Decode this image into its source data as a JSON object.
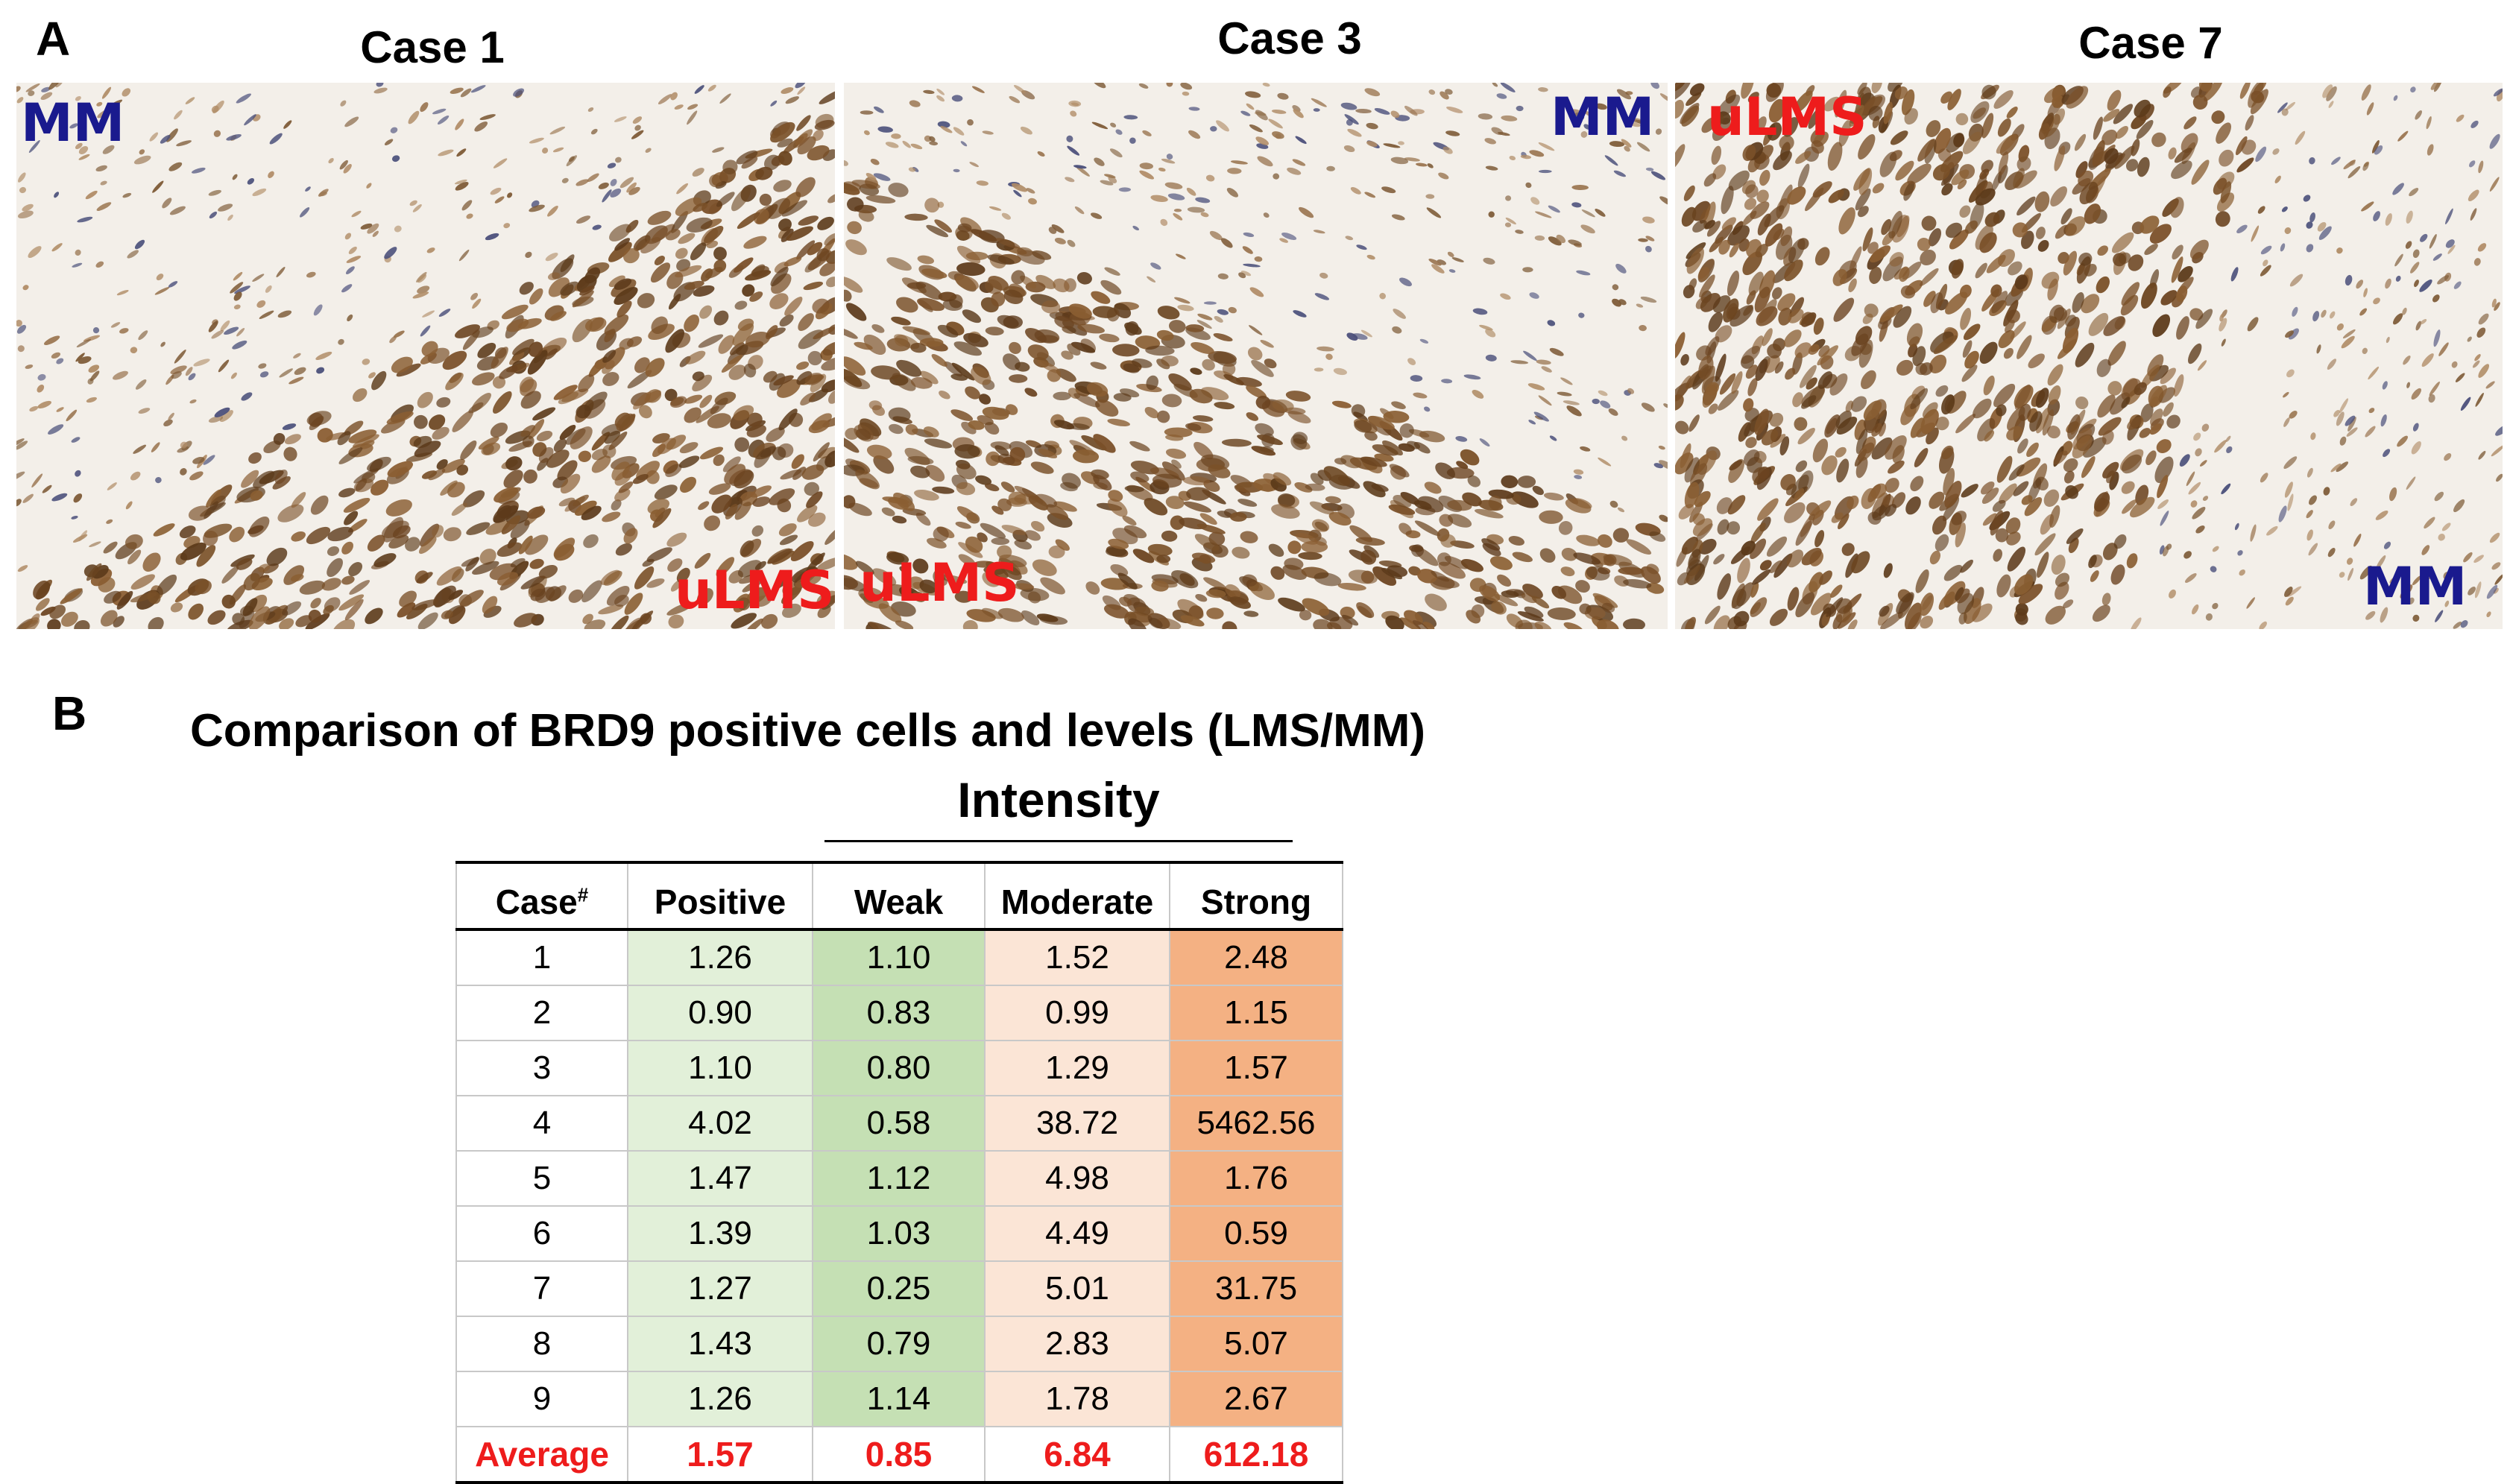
{
  "panel_a": {
    "letter": "A",
    "images": [
      {
        "title": "Case 1",
        "labels": {
          "mm": "MM",
          "ulms": "uLMS"
        }
      },
      {
        "title": "Case 3",
        "labels": {
          "mm": "MM",
          "ulms": "uLMS"
        }
      },
      {
        "title": "Case 7",
        "labels": {
          "mm": "MM",
          "ulms": "uLMS"
        }
      }
    ]
  },
  "panel_b": {
    "letter": "B",
    "title": "Comparison of BRD9 positive cells and levels (LMS/MM)",
    "group_header": "Intensity",
    "table": {
      "headers": {
        "case": "Case",
        "case_sup": "#",
        "positive": "Positive",
        "weak": "Weak",
        "moderate": "Moderate",
        "strong": "Strong"
      },
      "rows": [
        {
          "case": "1",
          "positive": "1.26",
          "weak": "1.10",
          "moderate": "1.52",
          "strong": "2.48"
        },
        {
          "case": "2",
          "positive": "0.90",
          "weak": "0.83",
          "moderate": "0.99",
          "strong": "1.15"
        },
        {
          "case": "3",
          "positive": "1.10",
          "weak": "0.80",
          "moderate": "1.29",
          "strong": "1.57"
        },
        {
          "case": "4",
          "positive": "4.02",
          "weak": "0.58",
          "moderate": "38.72",
          "strong": "5462.56"
        },
        {
          "case": "5",
          "positive": "1.47",
          "weak": "1.12",
          "moderate": "4.98",
          "strong": "1.76"
        },
        {
          "case": "6",
          "positive": "1.39",
          "weak": "1.03",
          "moderate": "4.49",
          "strong": "0.59"
        },
        {
          "case": "7",
          "positive": "1.27",
          "weak": "0.25",
          "moderate": "5.01",
          "strong": "31.75"
        },
        {
          "case": "8",
          "positive": "1.43",
          "weak": "0.79",
          "moderate": "2.83",
          "strong": "5.07"
        },
        {
          "case": "9",
          "positive": "1.26",
          "weak": "1.14",
          "moderate": "1.78",
          "strong": "2.67"
        }
      ],
      "average": {
        "case": "Average",
        "positive": "1.57",
        "weak": "0.85",
        "moderate": "6.84",
        "strong": "612.18"
      }
    }
  },
  "colors": {
    "mm_label": "#1a1a8e",
    "ulms_label": "#ee1c1c",
    "positive_fill": "#e2f0d9",
    "weak_fill": "#c5e0b4",
    "moderate_fill": "#fbe5d6",
    "strong_fill": "#f4b183"
  }
}
